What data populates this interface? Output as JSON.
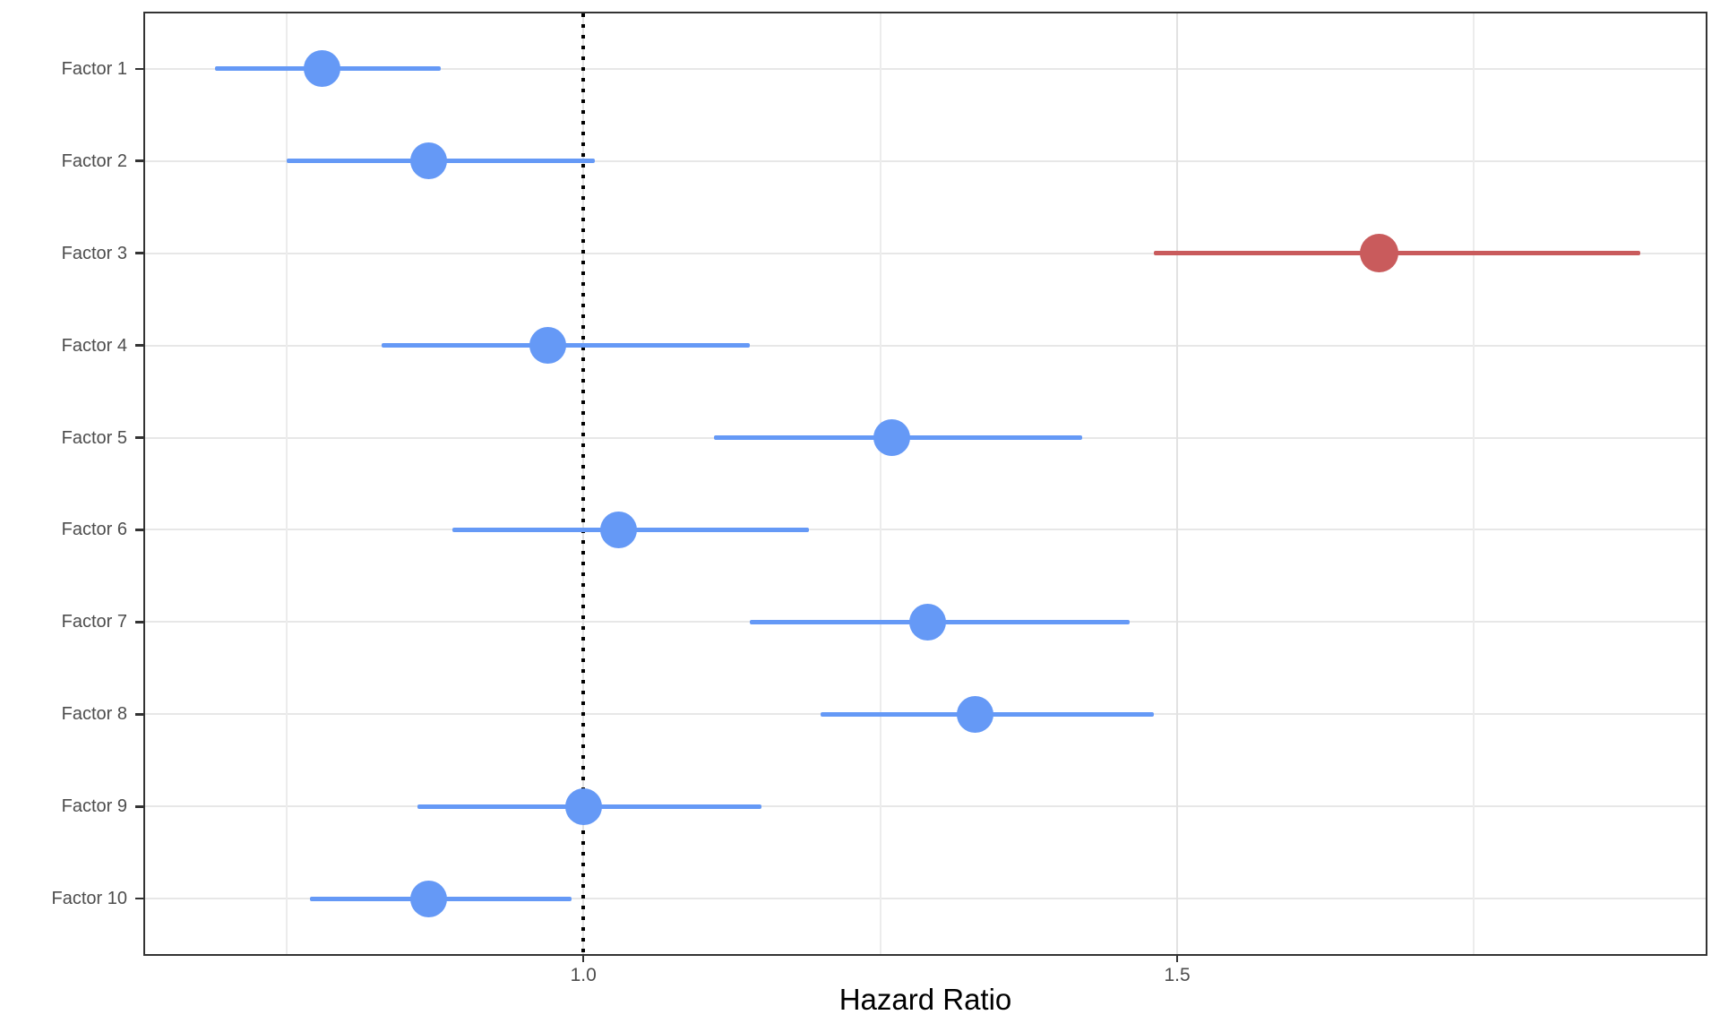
{
  "chart_data": {
    "type": "scatter",
    "subtype": "forest-plot",
    "title": "",
    "xlabel": "Hazard Ratio",
    "ylabel": "",
    "xlim": [
      0.631,
      1.945
    ],
    "grid": true,
    "legend_position": "none",
    "x_ticks": [
      {
        "value": 1.0,
        "label": "1.0"
      },
      {
        "value": 1.5,
        "label": "1.5"
      }
    ],
    "x_minor_gridlines": [
      0.75,
      1.25,
      1.75
    ],
    "reference_line": {
      "value": 1.0,
      "style": "dotted"
    },
    "points": [
      {
        "label": "Factor 1",
        "hr": 0.78,
        "ci_low": 0.69,
        "ci_high": 0.88,
        "color_key": "nonsignificant"
      },
      {
        "label": "Factor 2",
        "hr": 0.87,
        "ci_low": 0.75,
        "ci_high": 1.01,
        "color_key": "nonsignificant"
      },
      {
        "label": "Factor 3",
        "hr": 1.67,
        "ci_low": 1.48,
        "ci_high": 1.89,
        "color_key": "significant"
      },
      {
        "label": "Factor 4",
        "hr": 0.97,
        "ci_low": 0.83,
        "ci_high": 1.14,
        "color_key": "nonsignificant"
      },
      {
        "label": "Factor 5",
        "hr": 1.26,
        "ci_low": 1.11,
        "ci_high": 1.42,
        "color_key": "nonsignificant"
      },
      {
        "label": "Factor 6",
        "hr": 1.03,
        "ci_low": 0.89,
        "ci_high": 1.19,
        "color_key": "nonsignificant"
      },
      {
        "label": "Factor 7",
        "hr": 1.29,
        "ci_low": 1.14,
        "ci_high": 1.46,
        "color_key": "nonsignificant"
      },
      {
        "label": "Factor 8",
        "hr": 1.33,
        "ci_low": 1.2,
        "ci_high": 1.48,
        "color_key": "nonsignificant"
      },
      {
        "label": "Factor 9",
        "hr": 1.0,
        "ci_low": 0.86,
        "ci_high": 1.15,
        "color_key": "nonsignificant"
      },
      {
        "label": "Factor 10",
        "hr": 0.87,
        "ci_low": 0.77,
        "ci_high": 0.99,
        "color_key": "nonsignificant"
      }
    ]
  },
  "colors": {
    "nonsignificant": "#6599F6",
    "significant": "#C95B5C",
    "reference_line": "#000000",
    "grid_major": "#E2E2E2",
    "grid_minor": "#ECECEC",
    "grid_row": "#E7E7E7",
    "panel_border": "#333333",
    "axis_text": "#4D4D4D",
    "axis_title": "#000000",
    "background": "#FFFFFF"
  }
}
